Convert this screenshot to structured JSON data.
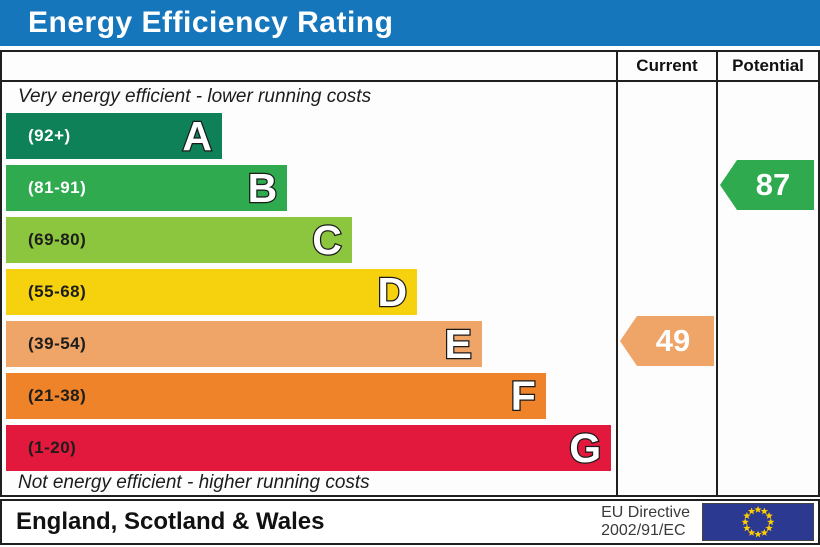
{
  "title": "Energy Efficiency Rating",
  "columns": {
    "current": "Current",
    "potential": "Potential"
  },
  "captions": {
    "top": "Very energy efficient - lower running costs",
    "bottom": "Not energy efficient - higher running costs"
  },
  "bands": [
    {
      "letter": "A",
      "range": "(92+)",
      "color": "#0E8158",
      "range_color": "#ffffff",
      "width_pct": 35.4
    },
    {
      "letter": "B",
      "range": "(81-91)",
      "color": "#2FAA4F",
      "range_color": "#ffffff",
      "width_pct": 46.1
    },
    {
      "letter": "C",
      "range": "(69-80)",
      "color": "#8CC63F",
      "range_color": "#1d1d1b",
      "width_pct": 56.7
    },
    {
      "letter": "D",
      "range": "(55-68)",
      "color": "#F6D10E",
      "range_color": "#1d1d1b",
      "width_pct": 67.4
    },
    {
      "letter": "E",
      "range": "(39-54)",
      "color": "#EFA468",
      "range_color": "#1d1d1b",
      "width_pct": 78.0
    },
    {
      "letter": "F",
      "range": "(21-38)",
      "color": "#EE8329",
      "range_color": "#1d1d1b",
      "width_pct": 88.5
    },
    {
      "letter": "G",
      "range": "(1-20)",
      "color": "#E3183D",
      "range_color": "#1d1d1b",
      "width_pct": 99.2
    }
  ],
  "ratings": {
    "current": {
      "value": "49",
      "band": "E",
      "color": "#EFA468"
    },
    "potential": {
      "value": "87",
      "band": "B",
      "color": "#2FAA4F"
    }
  },
  "footer": {
    "region": "England, Scotland & Wales",
    "directive_line1": "EU Directive",
    "directive_line2": "2002/91/EC"
  },
  "flag": {
    "background": "#2B3990",
    "star_color": "#FFCC00"
  },
  "accent_colors": {
    "title_bar": "#1576BC",
    "border": "#1f1f1f"
  },
  "chart_data": {
    "type": "bar",
    "title": "Energy Efficiency Rating",
    "categories": [
      "A",
      "B",
      "C",
      "D",
      "E",
      "F",
      "G"
    ],
    "band_ranges": [
      "92+",
      "81-91",
      "69-80",
      "55-68",
      "39-54",
      "21-38",
      "1-20"
    ],
    "band_colors": [
      "#0E8158",
      "#2FAA4F",
      "#8CC63F",
      "#F6D10E",
      "#EFA468",
      "#EE8329",
      "#E3183D"
    ],
    "bar_lengths_pct": [
      35.4,
      46.1,
      56.7,
      67.4,
      78.0,
      88.5,
      99.2
    ],
    "current_rating": 49,
    "current_band": "E",
    "potential_rating": 87,
    "potential_band": "B",
    "legend_position": "none",
    "grid": false
  }
}
